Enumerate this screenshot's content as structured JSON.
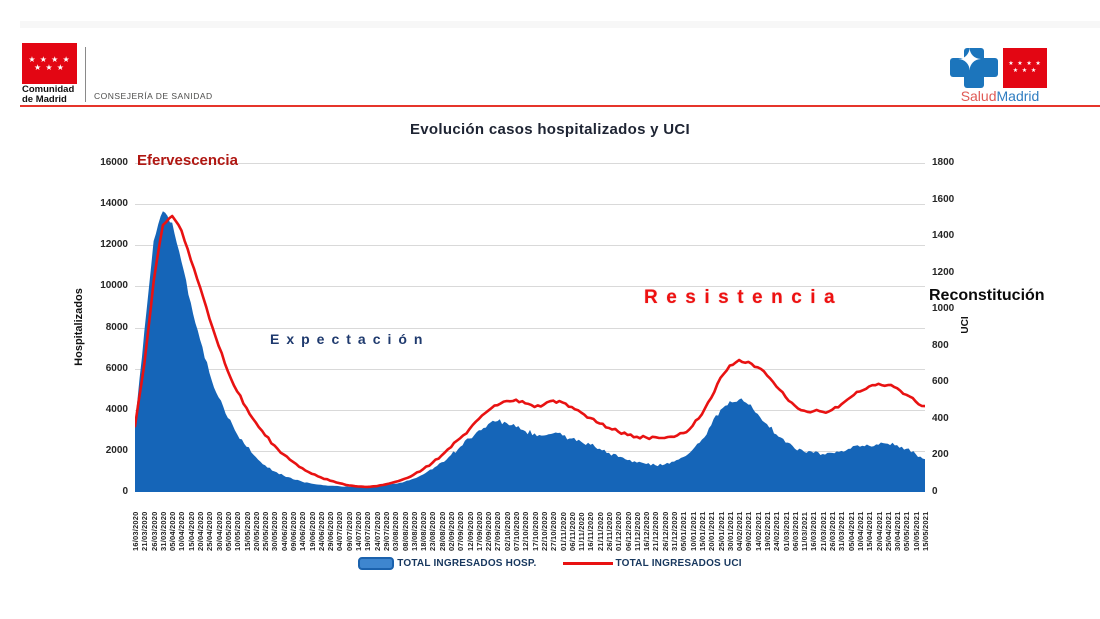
{
  "header": {
    "top_band_color": "#f7f7f7",
    "left_logo": {
      "line1": "Comunidad",
      "line2": "de Madrid",
      "flag_color": "#e30613",
      "stars_top": "★ ★ ★ ★",
      "stars_bottom": "★ ★ ★"
    },
    "department": "CONSEJERÍA DE SANIDAD",
    "red_line_color": "#e6352b",
    "right_logo": {
      "salud": "Salud",
      "madrid": "Madrid",
      "cross_color": "#1c75bc",
      "flag_color": "#e30613",
      "star_glyph": "✦",
      "stars_top": "★ ★ ★ ★",
      "stars_bottom": "★ ★ ★"
    }
  },
  "chart_data": {
    "type": "area",
    "title": "Evolución casos hospitalizados y UCI",
    "grid": "horizontal",
    "legend_position": "bottom",
    "left_axis": {
      "title": "Hospitalizados",
      "min": 0,
      "max": 16000,
      "ticks": [
        16000,
        14000,
        12000,
        10000,
        8000,
        6000,
        4000,
        2000,
        0
      ]
    },
    "right_axis": {
      "title": "UCI",
      "min": 0,
      "max": 1800,
      "ticks": [
        1800,
        1600,
        1400,
        1200,
        1000,
        800,
        600,
        400,
        200,
        0
      ]
    },
    "x_labels": [
      "16/03/2020",
      "21/03/2020",
      "26/03/2020",
      "31/03/2020",
      "05/04/2020",
      "10/04/2020",
      "15/04/2020",
      "20/04/2020",
      "25/04/2020",
      "30/04/2020",
      "05/05/2020",
      "10/05/2020",
      "15/05/2020",
      "20/05/2020",
      "25/05/2020",
      "30/05/2020",
      "04/06/2020",
      "09/06/2020",
      "14/06/2020",
      "19/06/2020",
      "24/06/2020",
      "29/06/2020",
      "04/07/2020",
      "09/07/2020",
      "14/07/2020",
      "19/07/2020",
      "24/07/2020",
      "29/07/2020",
      "03/08/2020",
      "08/08/2020",
      "13/08/2020",
      "18/08/2020",
      "23/08/2020",
      "28/08/2020",
      "02/09/2020",
      "07/09/2020",
      "12/09/2020",
      "17/09/2020",
      "22/09/2020",
      "27/09/2020",
      "02/10/2020",
      "07/10/2020",
      "12/10/2020",
      "17/10/2020",
      "22/10/2020",
      "27/10/2020",
      "01/11/2020",
      "06/11/2020",
      "11/11/2020",
      "16/11/2020",
      "21/11/2020",
      "26/11/2020",
      "01/12/2020",
      "06/12/2020",
      "11/12/2020",
      "16/12/2020",
      "21/12/2020",
      "26/12/2020",
      "31/12/2020",
      "05/01/2021",
      "10/01/2021",
      "15/01/2021",
      "20/01/2021",
      "25/01/2021",
      "30/01/2021",
      "04/02/2021",
      "09/02/2021",
      "14/02/2021",
      "19/02/2021",
      "24/02/2021",
      "01/03/2021",
      "06/03/2021",
      "11/03/2021",
      "16/03/2021",
      "21/03/2021",
      "26/03/2021",
      "31/03/2021",
      "05/04/2021",
      "10/04/2021",
      "15/04/2021",
      "20/04/2021",
      "25/04/2021",
      "30/04/2021",
      "05/05/2021",
      "10/05/2021",
      "15/05/2021"
    ],
    "series": [
      {
        "name": "TOTAL INGRESADOS HOSP.",
        "type": "area",
        "axis": "left",
        "color": "#1565b8",
        "values": [
          3300,
          7800,
          12200,
          13650,
          13100,
          11200,
          9200,
          7400,
          5800,
          4600,
          3600,
          2800,
          2200,
          1700,
          1300,
          1000,
          800,
          620,
          500,
          410,
          350,
          300,
          280,
          260,
          250,
          260,
          290,
          330,
          400,
          500,
          650,
          850,
          1100,
          1450,
          1800,
          2200,
          2600,
          3000,
          3300,
          3450,
          3350,
          3150,
          2950,
          2850,
          2750,
          2850,
          2750,
          2600,
          2450,
          2300,
          2100,
          1900,
          1700,
          1550,
          1430,
          1360,
          1300,
          1340,
          1480,
          1700,
          2050,
          2550,
          3250,
          4000,
          4420,
          4500,
          4250,
          3800,
          3300,
          2800,
          2400,
          2100,
          1950,
          1900,
          1850,
          1900,
          2000,
          2100,
          2200,
          2250,
          2300,
          2350,
          2280,
          2100,
          1850,
          1600
        ]
      },
      {
        "name": "TOTAL INGRESADOS UCI",
        "type": "line",
        "axis": "right",
        "color": "#e81212",
        "values": [
          360,
          700,
          1150,
          1460,
          1510,
          1430,
          1270,
          1120,
          950,
          800,
          660,
          550,
          460,
          380,
          310,
          255,
          205,
          165,
          130,
          100,
          80,
          62,
          48,
          36,
          30,
          28,
          32,
          42,
          55,
          72,
          95,
          125,
          160,
          200,
          245,
          295,
          345,
          400,
          445,
          475,
          498,
          505,
          485,
          465,
          478,
          500,
          490,
          465,
          435,
          405,
          375,
          350,
          330,
          312,
          302,
          298,
          300,
          296,
          302,
          322,
          362,
          425,
          515,
          625,
          692,
          722,
          712,
          682,
          638,
          578,
          520,
          472,
          445,
          442,
          438,
          450,
          480,
          518,
          550,
          578,
          592,
          585,
          568,
          532,
          495,
          470
        ]
      }
    ],
    "annotations": [
      {
        "text": "Efervescencia",
        "color": "#b01712"
      },
      {
        "text": "Expectación",
        "color": "#1f3a6e"
      },
      {
        "text": "Resistencia",
        "color": "#ee1111"
      },
      {
        "text": "Reconstitución",
        "color": "#0b0b0b"
      }
    ],
    "gridline_color": "#d9d9d9"
  }
}
